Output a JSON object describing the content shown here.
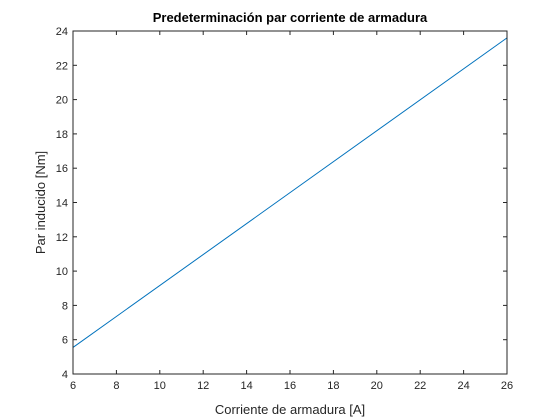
{
  "chart_data": {
    "type": "line",
    "title": "Predeterminación par corriente de armadura",
    "xlabel": "Corriente de armadura [A]",
    "ylabel": "Par inducido [Nm]",
    "xlim": [
      6,
      26
    ],
    "ylim": [
      4,
      24
    ],
    "xticks": [
      6,
      8,
      10,
      12,
      14,
      16,
      18,
      20,
      22,
      24,
      26
    ],
    "yticks": [
      4,
      6,
      8,
      10,
      12,
      14,
      16,
      18,
      20,
      22,
      24
    ],
    "grid": false,
    "box": true,
    "series": [
      {
        "color": "#0072bd",
        "x": [
          6,
          26
        ],
        "y": [
          5.55,
          23.6
        ]
      }
    ]
  }
}
